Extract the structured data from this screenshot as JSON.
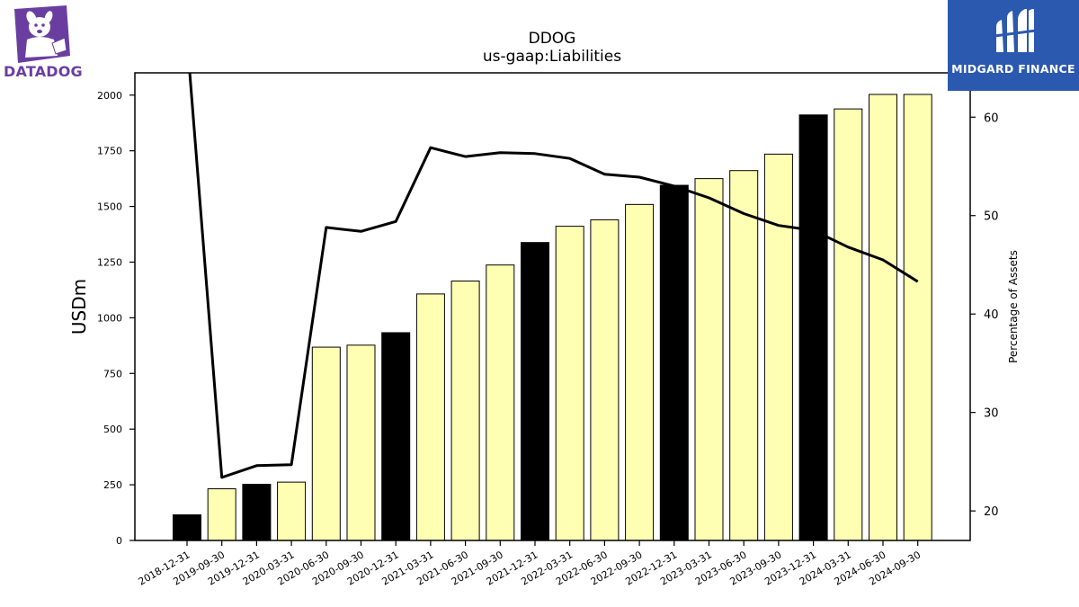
{
  "logos": {
    "left_text": "DATADOG",
    "right_text": "MIDGARD FINANCE",
    "left_color": "#6a3ea1",
    "right_bg": "#2b59b0"
  },
  "chart_data": {
    "type": "bar",
    "title": "DDOG",
    "subtitle": "us-gaap:Liabilities",
    "ylabel": "USDm",
    "y2label": "Percentage of Assets",
    "ylim": [
      0,
      2100
    ],
    "y2lim": [
      17,
      64.5
    ],
    "yticks": [
      0,
      250,
      500,
      750,
      1000,
      1250,
      1500,
      1750,
      2000
    ],
    "y2ticks": [
      20,
      30,
      40,
      50,
      60
    ],
    "categories": [
      "2018-12-31",
      "2019-09-30",
      "2019-12-31",
      "2020-03-31",
      "2020-06-30",
      "2020-09-30",
      "2020-12-31",
      "2021-03-31",
      "2021-06-30",
      "2021-09-30",
      "2021-12-31",
      "2022-03-31",
      "2022-06-30",
      "2022-09-30",
      "2022-12-31",
      "2023-03-31",
      "2023-06-30",
      "2023-09-30",
      "2023-12-31",
      "2024-03-31",
      "2024-06-30",
      "2024-09-30"
    ],
    "series": [
      {
        "type": "bar",
        "values": [
          115,
          232,
          252,
          262,
          868,
          877,
          933,
          1107,
          1165,
          1237,
          1338,
          1411,
          1440,
          1509,
          1595,
          1625,
          1661,
          1735,
          1911,
          1938,
          2003,
          2003
        ],
        "highlight": [
          true,
          false,
          true,
          false,
          false,
          false,
          true,
          false,
          false,
          false,
          true,
          false,
          false,
          false,
          true,
          false,
          false,
          false,
          true,
          false,
          false,
          false
        ],
        "color": "#ffffb4",
        "highlight_color": "#000000"
      },
      {
        "type": "line",
        "axis": "right",
        "values": [
          68.0,
          23.4,
          24.6,
          24.7,
          48.8,
          48.4,
          49.4,
          56.9,
          56.0,
          56.4,
          56.3,
          55.8,
          54.2,
          53.9,
          53.0,
          51.8,
          50.2,
          49.0,
          48.5,
          46.8,
          45.5,
          43.3
        ],
        "color": "#000000"
      }
    ],
    "grid": false
  }
}
